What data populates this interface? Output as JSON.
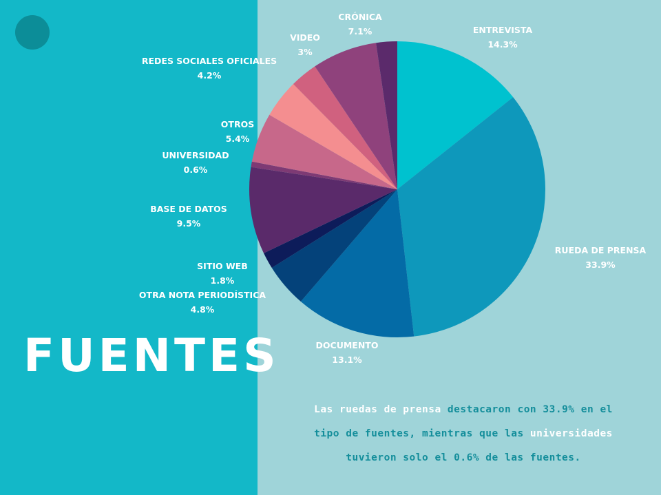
{
  "title": "FUENTES",
  "chart_data": {
    "type": "pie",
    "slices": [
      {
        "label": "ENTREVISTA",
        "value": 14.3,
        "value_label": "14.3%",
        "color": "#00c2cf"
      },
      {
        "label": "RUEDA DE PRENSA",
        "value": 33.9,
        "value_label": "33.9%",
        "color": "#0e98bb"
      },
      {
        "label": "DOCUMENTO",
        "value": 13.1,
        "value_label": "13.1%",
        "color": "#046ba6"
      },
      {
        "label": "OTRA NOTA PERIODÍSTICA",
        "value": 4.8,
        "value_label": "4.8%",
        "color": "#04427a"
      },
      {
        "label": "SITIO WEB",
        "value": 1.8,
        "value_label": "1.8%",
        "color": "#0d1c5a"
      },
      {
        "label": "BASE DE DATOS",
        "value": 9.5,
        "value_label": "9.5%",
        "color": "#5a2a6a"
      },
      {
        "label": "UNIVERSIDAD",
        "value": 0.6,
        "value_label": "0.6%",
        "color": "#7e3a74"
      },
      {
        "label": "OTROS",
        "value": 5.4,
        "value_label": "5.4%",
        "color": "#c7688a"
      },
      {
        "label": "REDES SOCIALES OFICIALES",
        "value": 4.2,
        "value_label": "4.2%",
        "color": "#f48e90"
      },
      {
        "label": "VIDEO",
        "value": 3,
        "value_label": "3%",
        "color": "#d0617f"
      },
      {
        "label": "CRÓNICA",
        "value": 7.1,
        "value_label": "7.1%",
        "color": "#8f427c"
      }
    ],
    "extra_slice_color": "#5b2a6b"
  },
  "caption": {
    "l1_a": "Las ruedas de prensa",
    "l1_b": " destacaron con 33.9% en el",
    "l2_a": "tipo de fuentes, mientras que las",
    "l2_b": " universidades",
    "l3": "tuvieron solo el 0.6% de las fuentes."
  },
  "colors": {
    "left_panel": "#13b8c8",
    "right_panel": "#9fd4d9",
    "caption_text": "#148e9b",
    "label_text": "#ffffff"
  }
}
